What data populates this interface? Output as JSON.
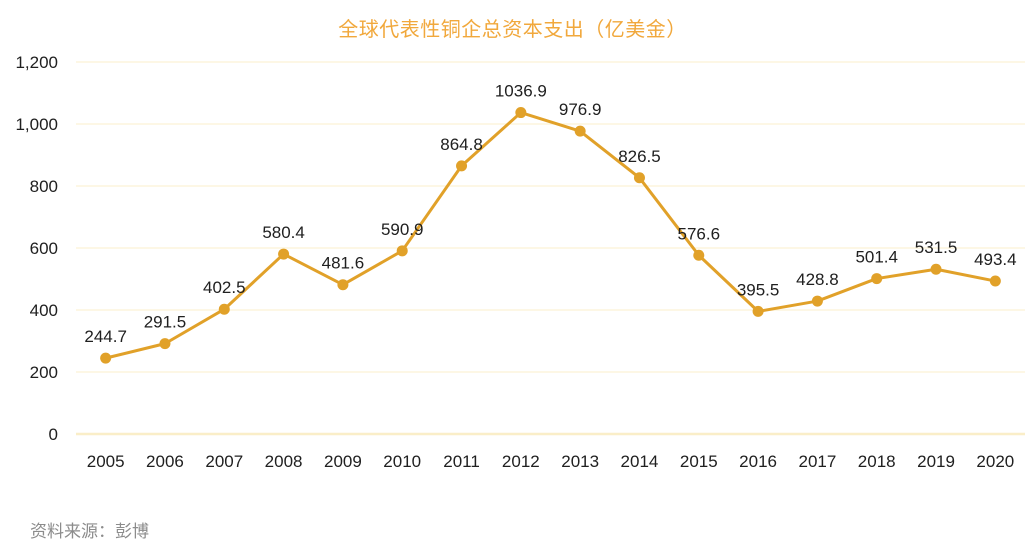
{
  "title": "全球代表性铜企总资本支出（亿美金）",
  "source_note": "资料来源：彭博",
  "colors": {
    "line": "#E1A129",
    "marker": "#E1A129",
    "title": "#F1A83C",
    "grid": "#FCF2D5",
    "axis_line": "#FAEEC8",
    "label": "#202020",
    "source": "#8C8C8C",
    "background": "#FFFFFF"
  },
  "chart_data": {
    "type": "line",
    "title": "全球代表性铜企总资本支出（亿美金）",
    "categories": [
      "2005",
      "2006",
      "2007",
      "2008",
      "2009",
      "2010",
      "2011",
      "2012",
      "2013",
      "2014",
      "2015",
      "2016",
      "2017",
      "2018",
      "2019",
      "2020"
    ],
    "values": [
      244.7,
      291.5,
      402.5,
      580.4,
      481.6,
      590.9,
      864.8,
      1036.9,
      976.9,
      826.5,
      576.6,
      395.5,
      428.8,
      501.4,
      531.5,
      493.4
    ],
    "xlabel": "",
    "ylabel": "",
    "ylim": [
      0,
      1200
    ],
    "y_tick_interval": 200,
    "y_tick_labels": [
      "0",
      "200",
      "400",
      "600",
      "800",
      "1,000",
      "1,200"
    ],
    "grid": true,
    "data_labels": true,
    "legend": "none",
    "marker": "circle"
  }
}
